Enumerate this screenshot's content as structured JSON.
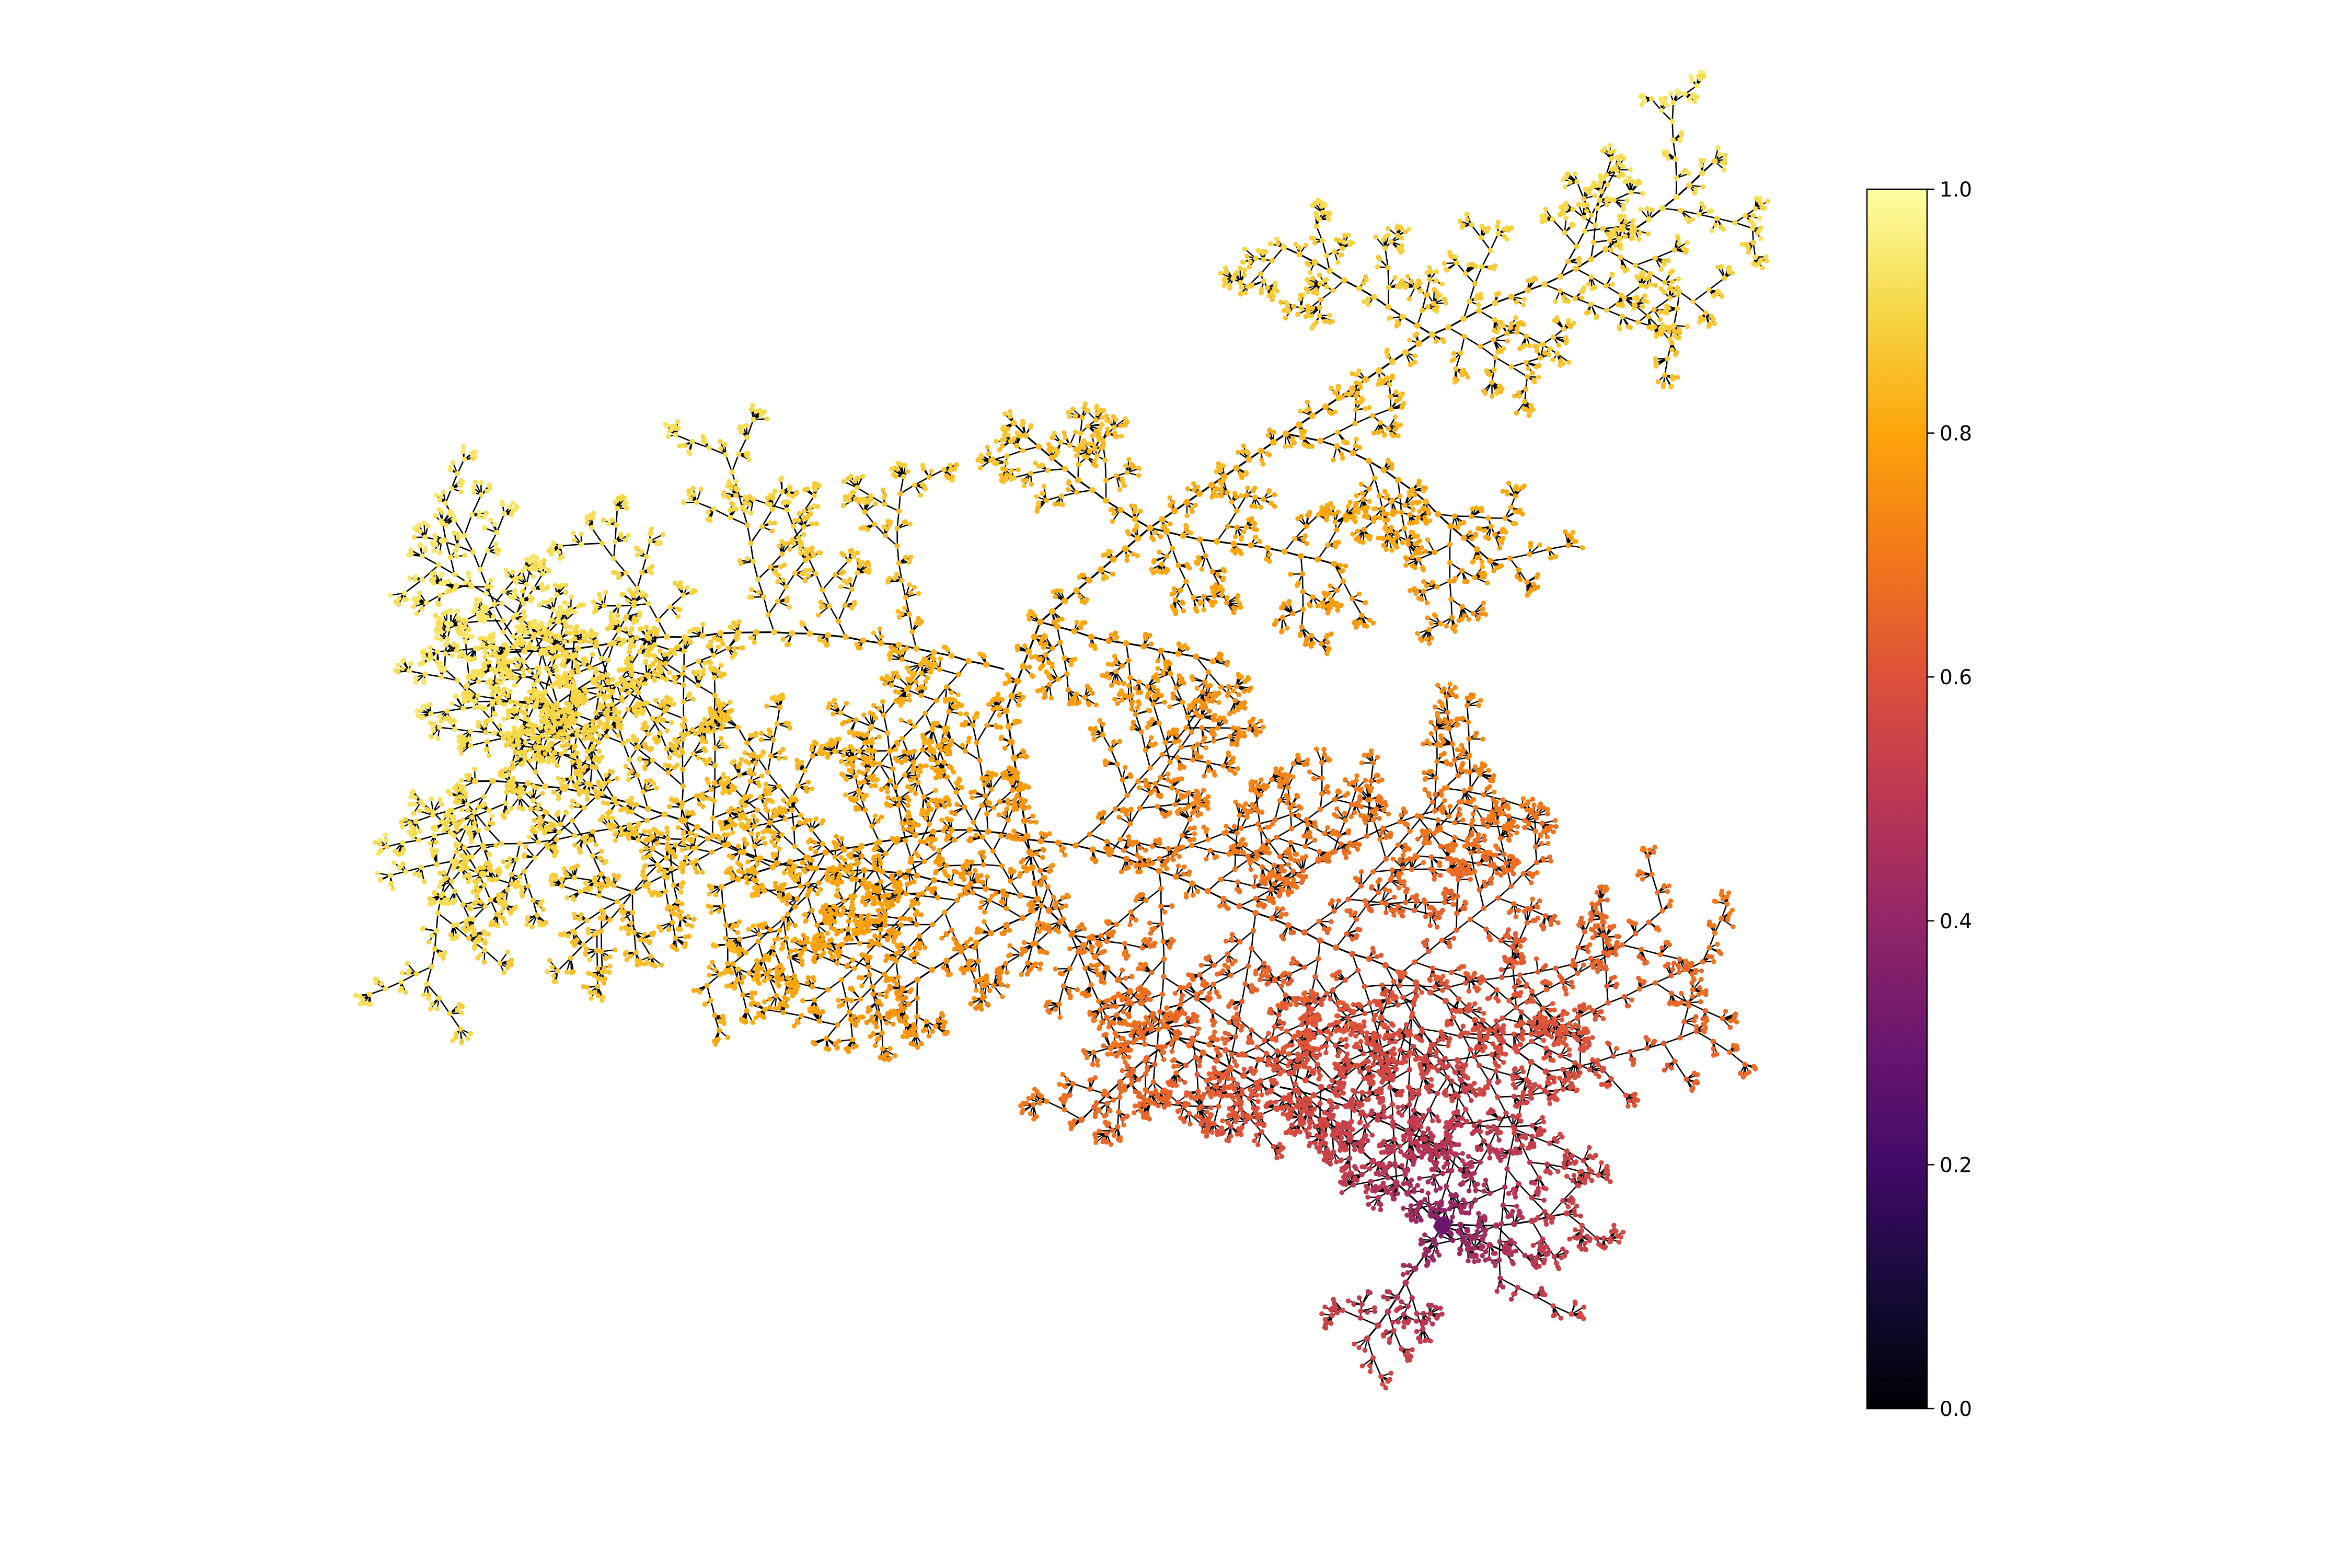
{
  "chart_data": {
    "type": "tree",
    "title": "",
    "xlabel": "",
    "ylabel": "",
    "axes_visible": false,
    "grid": false,
    "root_value": 0.3,
    "colorbar": {
      "colormap": "inferno",
      "range": [
        0.0,
        1.0
      ],
      "ticks": [
        {
          "value": 0.0,
          "label": "0.0"
        },
        {
          "value": 0.2,
          "label": "0.2"
        },
        {
          "value": 0.4,
          "label": "0.4"
        },
        {
          "value": 0.6,
          "label": "0.6"
        },
        {
          "value": 0.8,
          "label": "0.8"
        },
        {
          "value": 1.0,
          "label": "1.0"
        }
      ],
      "placement": "right"
    },
    "colormap_stops": [
      {
        "value": 0.0,
        "color": "#000004"
      },
      {
        "value": 0.1,
        "color": "#160b39"
      },
      {
        "value": 0.2,
        "color": "#420a68"
      },
      {
        "value": 0.3,
        "color": "#6a176e"
      },
      {
        "value": 0.4,
        "color": "#932667"
      },
      {
        "value": 0.5,
        "color": "#bc3754"
      },
      {
        "value": 0.6,
        "color": "#dd513a"
      },
      {
        "value": 0.7,
        "color": "#f37819"
      },
      {
        "value": 0.8,
        "color": "#fca50a"
      },
      {
        "value": 0.9,
        "color": "#f6d746"
      },
      {
        "value": 1.0,
        "color": "#fcffa4"
      }
    ]
  }
}
